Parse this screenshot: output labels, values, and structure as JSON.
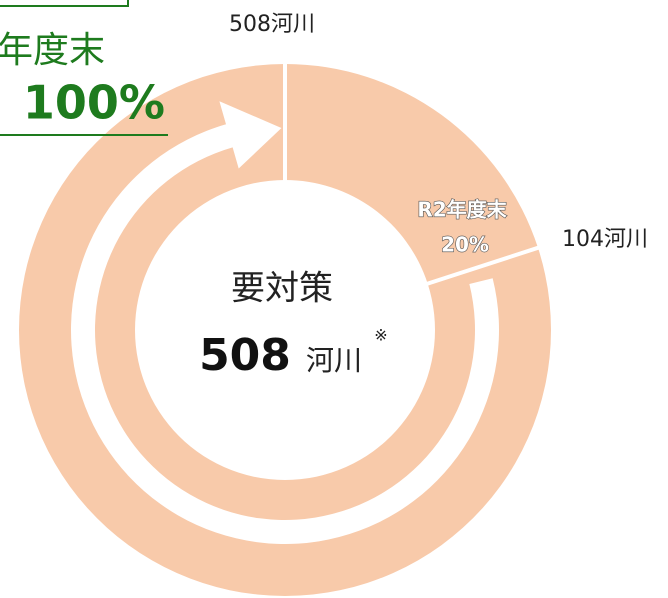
{
  "chart_data": {
    "type": "donut",
    "total_label": "508河川",
    "achieved_label": "104河川",
    "center_title": "要対策",
    "center_value": "508",
    "center_unit": "河川",
    "center_note": "※",
    "labels": [
      "R2年度末",
      "年度末"
    ],
    "values": [
      20,
      100
    ],
    "value_labels": [
      "20%",
      "100%"
    ],
    "color": "#f8caaa",
    "target_color": "#1e7b1e"
  }
}
